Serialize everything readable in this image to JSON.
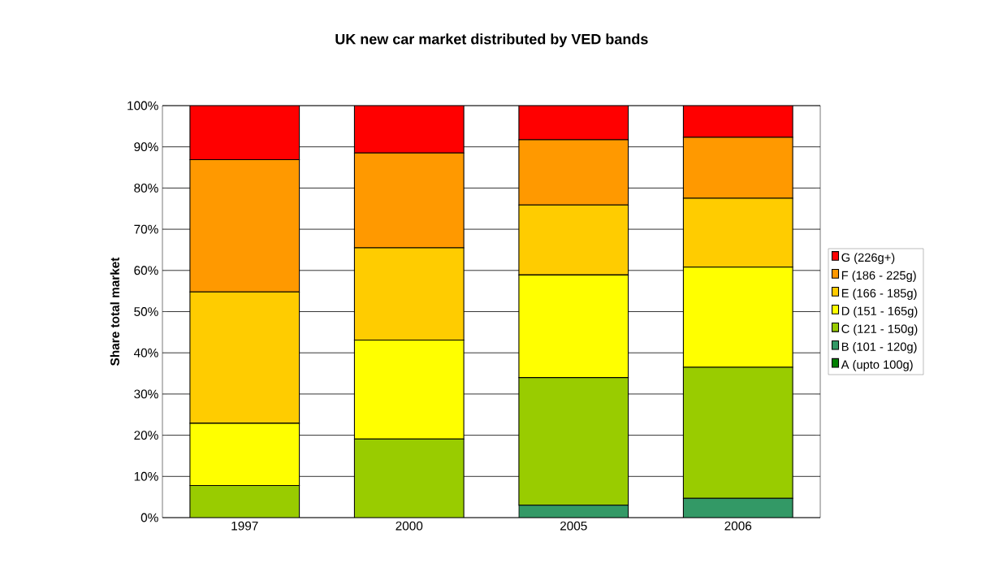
{
  "chart_data": {
    "type": "bar",
    "stacked": true,
    "title": "UK new car market distributed by VED bands",
    "ylabel": "Share total market",
    "categories": [
      "1997",
      "2000",
      "2005",
      "2006"
    ],
    "series": [
      {
        "name": "A (upto 100g)",
        "color": "#008000",
        "values": [
          0,
          0,
          0,
          0
        ]
      },
      {
        "name": "B (101 - 120g)",
        "color": "#339966",
        "values": [
          0,
          0,
          3.0,
          4.7
        ]
      },
      {
        "name": "C (121 - 150g)",
        "color": "#99cc00",
        "values": [
          7.8,
          19.1,
          31.0,
          31.8
        ]
      },
      {
        "name": "D (151 - 165g)",
        "color": "#ffff00",
        "values": [
          15.1,
          24.0,
          24.9,
          24.3
        ]
      },
      {
        "name": "E (166 - 185g)",
        "color": "#ffcc00",
        "values": [
          31.9,
          22.4,
          17.0,
          16.7
        ]
      },
      {
        "name": "F (186 - 225g)",
        "color": "#ff9900",
        "values": [
          32.1,
          23.0,
          15.8,
          14.8
        ]
      },
      {
        "name": "G (226g+)",
        "color": "#ff0000",
        "values": [
          13.1,
          11.5,
          8.3,
          7.7
        ]
      }
    ],
    "ylim": [
      0,
      100
    ],
    "yticks": [
      {
        "value": 0,
        "label": "0%"
      },
      {
        "value": 10,
        "label": "10%"
      },
      {
        "value": 20,
        "label": "20%"
      },
      {
        "value": 30,
        "label": "30%"
      },
      {
        "value": 40,
        "label": "40%"
      },
      {
        "value": 50,
        "label": "50%"
      },
      {
        "value": 60,
        "label": "60%"
      },
      {
        "value": 70,
        "label": "70%"
      },
      {
        "value": 80,
        "label": "80%"
      },
      {
        "value": 90,
        "label": "90%"
      },
      {
        "value": 100,
        "label": "100%"
      }
    ],
    "grid": "y",
    "legend": "right"
  }
}
